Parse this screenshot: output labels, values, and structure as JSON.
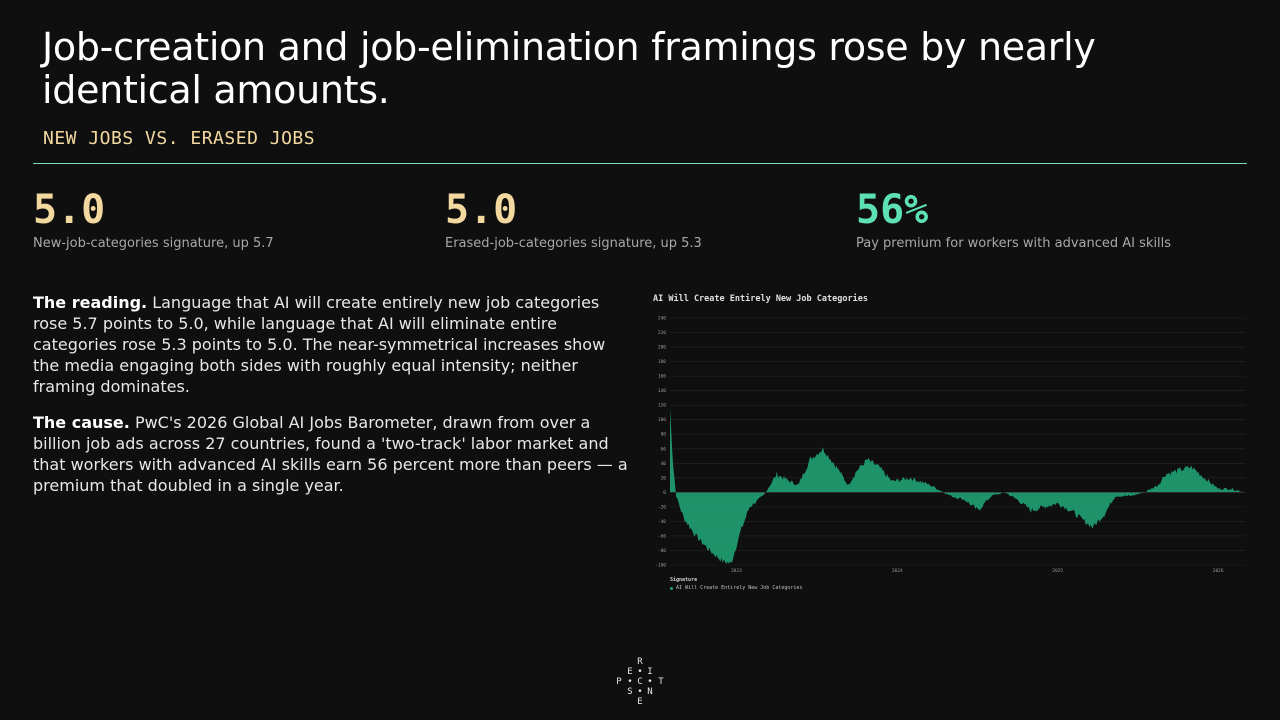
{
  "slide": {
    "title": "Job-creation and job-elimination framings rose by nearly identical amounts.",
    "subtitle": "NEW JOBS VS. ERASED JOBS"
  },
  "stats": [
    {
      "value": "5.0",
      "label": "New-job-categories signature, up 5.7",
      "color": "#f3d9a0"
    },
    {
      "value": "5.0",
      "label": "Erased-job-categories signature, up 5.3",
      "color": "#f3d9a0"
    },
    {
      "value": "56%",
      "label": "Pay premium for workers with advanced AI skills",
      "color": "#5ce0b4"
    }
  ],
  "paragraphs": [
    {
      "lead": "The reading.",
      "text": " Language that AI will create entirely new job categories rose 5.7 points to 5.0, while language that AI will eliminate entire categories rose 5.3 points to 5.0. The near-symmetrical increases show the media engaging both sides with roughly equal intensity; neither framing dominates."
    },
    {
      "lead": "The cause.",
      "text": " PwC's 2026 Global AI Jobs Barometer, drawn from over a billion job ads across 27 countries, found a 'two-track' labor market and that workers with advanced AI skills earn 56 percent more than peers — a premium that doubled in a single year."
    }
  ],
  "logo": {
    "letters": [
      "R",
      "E",
      "I",
      "P",
      "C",
      "T",
      "S",
      "N",
      "E"
    ]
  },
  "chart_data": {
    "type": "area",
    "title": "AI Will Create Entirely New Job Categories",
    "legend_title": "Signature",
    "legend_placement": "bottom-left",
    "series": [
      {
        "name": "AI Will Create Entirely New Job Categories",
        "color": "#1f9d71"
      }
    ],
    "ylim": [
      -100,
      240
    ],
    "yticks": [
      -100,
      -80,
      -60,
      -40,
      -20,
      0,
      20,
      40,
      60,
      80,
      100,
      120,
      140,
      160,
      180,
      200,
      220,
      240
    ],
    "xticks": [
      "2023",
      "2024",
      "2025",
      "2026"
    ],
    "xlim": [
      "2023-01",
      "2026-08"
    ],
    "grid": true,
    "points": [
      {
        "x": "2023-01-01",
        "y": 115
      },
      {
        "x": "2023-01-08",
        "y": 40
      },
      {
        "x": "2023-01-15",
        "y": -5
      },
      {
        "x": "2023-02-01",
        "y": -35
      },
      {
        "x": "2023-03-01",
        "y": -60
      },
      {
        "x": "2023-04-01",
        "y": -80
      },
      {
        "x": "2023-05-01",
        "y": -95
      },
      {
        "x": "2023-05-20",
        "y": -98
      },
      {
        "x": "2023-06-10",
        "y": -55
      },
      {
        "x": "2023-07-01",
        "y": -20
      },
      {
        "x": "2023-08-01",
        "y": -5
      },
      {
        "x": "2023-09-01",
        "y": 25
      },
      {
        "x": "2023-10-01",
        "y": 15
      },
      {
        "x": "2023-10-20",
        "y": 10
      },
      {
        "x": "2023-11-15",
        "y": 45
      },
      {
        "x": "2023-12-15",
        "y": 60
      },
      {
        "x": "2024-01-15",
        "y": 35
      },
      {
        "x": "2024-02-10",
        "y": 10
      },
      {
        "x": "2024-03-01",
        "y": 30
      },
      {
        "x": "2024-03-25",
        "y": 45
      },
      {
        "x": "2024-04-20",
        "y": 35
      },
      {
        "x": "2024-05-20",
        "y": 15
      },
      {
        "x": "2024-07-01",
        "y": 20
      },
      {
        "x": "2024-08-15",
        "y": 10
      },
      {
        "x": "2024-09-15",
        "y": 0
      },
      {
        "x": "2024-10-01",
        "y": -5
      },
      {
        "x": "2024-11-01",
        "y": -10
      },
      {
        "x": "2024-12-01",
        "y": -25
      },
      {
        "x": "2025-01-01",
        "y": -5
      },
      {
        "x": "2025-02-01",
        "y": 0
      },
      {
        "x": "2025-03-01",
        "y": -10
      },
      {
        "x": "2025-04-01",
        "y": -25
      },
      {
        "x": "2025-05-01",
        "y": -20
      },
      {
        "x": "2025-06-01",
        "y": -15
      },
      {
        "x": "2025-07-01",
        "y": -25
      },
      {
        "x": "2025-08-01",
        "y": -40
      },
      {
        "x": "2025-08-20",
        "y": -48
      },
      {
        "x": "2025-09-15",
        "y": -30
      },
      {
        "x": "2025-10-10",
        "y": -5
      },
      {
        "x": "2025-11-15",
        "y": -5
      },
      {
        "x": "2025-12-15",
        "y": 0
      },
      {
        "x": "2026-01-15",
        "y": 10
      },
      {
        "x": "2026-02-01",
        "y": 25
      },
      {
        "x": "2026-03-01",
        "y": 30
      },
      {
        "x": "2026-04-01",
        "y": 35
      },
      {
        "x": "2026-05-01",
        "y": 20
      },
      {
        "x": "2026-06-01",
        "y": 5
      },
      {
        "x": "2026-07-01",
        "y": 5
      },
      {
        "x": "2026-08-01",
        "y": 0
      }
    ]
  }
}
